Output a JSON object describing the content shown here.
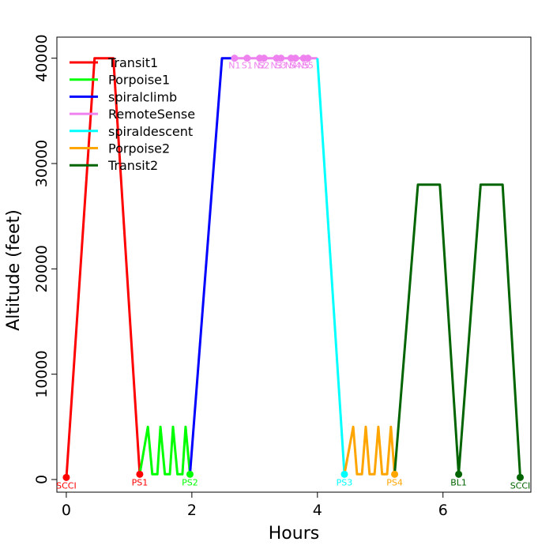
{
  "chart_data": {
    "type": "line",
    "title": "",
    "xlabel": "Hours",
    "ylabel": "Altitude (feet)",
    "xlim": [
      -0.15,
      7.4
    ],
    "ylim": [
      -1200,
      42000
    ],
    "x_ticks": [
      0,
      2,
      4,
      6
    ],
    "y_ticks": [
      0,
      10000,
      20000,
      30000,
      40000
    ],
    "legend_position": "top-left",
    "series": [
      {
        "name": "Transit1",
        "color": "#ff0000",
        "x": [
          0,
          0.45,
          0.75,
          1.17
        ],
        "y": [
          0,
          40000,
          40000,
          500
        ]
      },
      {
        "name": "Porpoise1",
        "color": "#00ff00",
        "x": [
          1.17,
          1.3,
          1.37,
          1.45,
          1.5,
          1.57,
          1.65,
          1.7,
          1.77,
          1.85,
          1.9,
          1.97
        ],
        "y": [
          500,
          5000,
          500,
          500,
          5000,
          500,
          500,
          5000,
          500,
          500,
          5000,
          500
        ]
      },
      {
        "name": "spiralclimb",
        "color": "#0000ff",
        "x": [
          1.97,
          2.48,
          2.65
        ],
        "y": [
          500,
          40000,
          40000
        ]
      },
      {
        "name": "RemoteSense",
        "color": "#ee82ee",
        "x": [
          2.65,
          4.0
        ],
        "y": [
          40000,
          40000
        ]
      },
      {
        "name": "spiraldescent",
        "color": "#00ffff",
        "x": [
          4.0,
          4.43
        ],
        "y": [
          40000,
          500
        ]
      },
      {
        "name": "Porpoise2",
        "color": "#ffa500",
        "x": [
          4.43,
          4.57,
          4.63,
          4.71,
          4.77,
          4.83,
          4.91,
          4.97,
          5.03,
          5.11,
          5.17,
          5.23
        ],
        "y": [
          500,
          5000,
          500,
          500,
          5000,
          500,
          500,
          5000,
          500,
          500,
          5000,
          500
        ]
      },
      {
        "name": "Transit2",
        "color": "#006400",
        "x": [
          5.23,
          5.6,
          5.95,
          6.25,
          6.6,
          6.95,
          7.23
        ],
        "y": [
          500,
          28000,
          28000,
          500,
          28000,
          28000,
          200
        ]
      }
    ],
    "waypoints": [
      {
        "label": "SCCI",
        "x": 0.0,
        "y": 200,
        "color": "#ff0000"
      },
      {
        "label": "PS1",
        "x": 1.17,
        "y": 500,
        "color": "#ff0000"
      },
      {
        "label": "PS2",
        "x": 1.97,
        "y": 500,
        "color": "#00ff00"
      },
      {
        "label": "PS3",
        "x": 4.43,
        "y": 500,
        "color": "#00ffff"
      },
      {
        "label": "PS4",
        "x": 5.23,
        "y": 500,
        "color": "#ffa500"
      },
      {
        "label": "BL1",
        "x": 6.25,
        "y": 500,
        "color": "#006400"
      },
      {
        "label": "SCCI",
        "x": 7.23,
        "y": 200,
        "color": "#006400"
      }
    ],
    "remote_sense_points": [
      {
        "label": "N1",
        "x": 2.68,
        "y": 40000
      },
      {
        "label": "S1",
        "x": 2.88,
        "y": 40000
      },
      {
        "label": "N2",
        "x": 3.08,
        "y": 40000
      },
      {
        "label": "S2",
        "x": 3.15,
        "y": 40000
      },
      {
        "label": "N3",
        "x": 3.35,
        "y": 40000
      },
      {
        "label": "S3",
        "x": 3.42,
        "y": 40000
      },
      {
        "label": "N4",
        "x": 3.58,
        "y": 40000
      },
      {
        "label": "S4",
        "x": 3.65,
        "y": 40000
      },
      {
        "label": "N5",
        "x": 3.78,
        "y": 40000
      },
      {
        "label": "S5",
        "x": 3.85,
        "y": 40000
      }
    ],
    "remote_sense_color": "#ee82ee"
  }
}
